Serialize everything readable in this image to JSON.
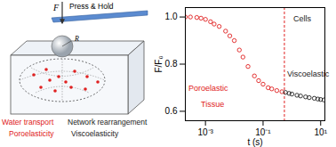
{
  "chart_data": {
    "type": "scatter",
    "x_label": "t (s)",
    "y_label": "F/F₀",
    "log": "x",
    "grid": false,
    "xlim": [
      0.0002,
      14
    ],
    "xticks": [
      {
        "value": 0.001,
        "label": "10⁻³"
      },
      {
        "value": 0.1,
        "label": "10⁻¹"
      },
      {
        "value": 10,
        "label": "10¹"
      }
    ],
    "ylim": [
      0.56,
      1.04
    ],
    "yticks": [
      0.6,
      0.8,
      {
        "value": 1.0,
        "label": "1.0"
      }
    ],
    "series": [
      {
        "name": "Poroelastic",
        "color": "#e02020",
        "marker": "circle",
        "x": [
          0.0002,
          0.0003,
          0.0005,
          0.0007,
          0.001,
          0.0015,
          0.002,
          0.003,
          0.005,
          0.007,
          0.01,
          0.015,
          0.02,
          0.03,
          0.05,
          0.07,
          0.1,
          0.15,
          0.2,
          0.3,
          0.45
        ],
        "values": [
          1.0,
          1.0,
          0.998,
          0.995,
          0.99,
          0.98,
          0.97,
          0.96,
          0.94,
          0.92,
          0.9,
          0.86,
          0.83,
          0.79,
          0.75,
          0.73,
          0.715,
          0.7,
          0.695,
          0.688,
          0.683
        ]
      },
      {
        "name": "Viscoelastic",
        "color": "#222222",
        "marker": "circle",
        "x": [
          0.6,
          0.8,
          1,
          1.5,
          2,
          3,
          4,
          6,
          8,
          10,
          13
        ],
        "values": [
          0.68,
          0.676,
          0.673,
          0.668,
          0.665,
          0.661,
          0.658,
          0.655,
          0.652,
          0.65,
          0.648
        ]
      }
    ],
    "vline": {
      "x": 0.55,
      "color": "#e02020",
      "line_style": "dashed"
    },
    "annotations": [
      {
        "text": "Tissue",
        "color": "#e02020"
      },
      {
        "text": "Cells",
        "color": "#222222"
      }
    ]
  },
  "diagram": {
    "force": "F",
    "action": "Press & Hold",
    "radius": "R",
    "labels": [
      {
        "text": "Water transport",
        "color": "#e02020"
      },
      {
        "text": "Network rearrangement",
        "color": "#222222"
      },
      {
        "text": "Poroelasticity",
        "color": "#e02020"
      },
      {
        "text": "Viscoelasticity",
        "color": "#222222"
      }
    ]
  }
}
